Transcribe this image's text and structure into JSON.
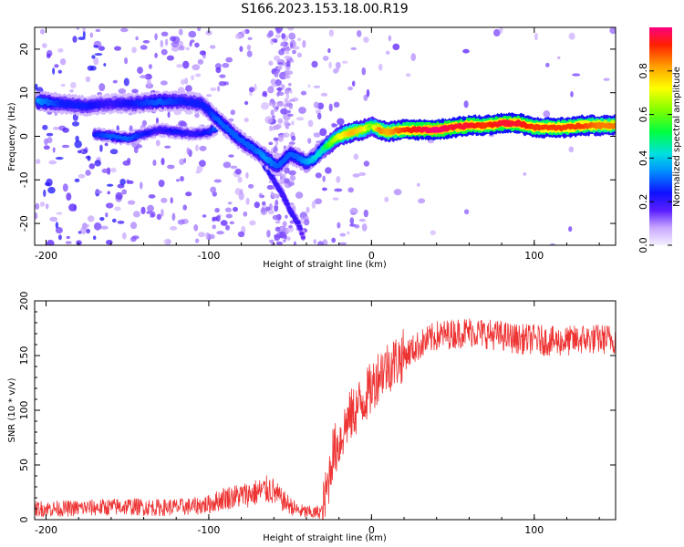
{
  "title": "S166.2023.153.18.00.R19",
  "chart_data": [
    {
      "type": "heatmap",
      "xlabel": "Height of straight line (km)",
      "ylabel": "Frequency (Hz)",
      "xlim": [
        -207,
        150
      ],
      "ylim": [
        -25,
        25
      ],
      "xticks": [
        -200,
        -100,
        0,
        100
      ],
      "yticks": [
        20,
        10,
        0,
        -10,
        -20
      ],
      "colorbar": {
        "label": "Normalized spectral amplitude",
        "range": [
          0,
          1
        ],
        "ticks": [
          "0.0",
          "0.2",
          "0.4",
          "0.6",
          "0.8"
        ],
        "tick_values": [
          0,
          0.2,
          0.4,
          0.6,
          0.8
        ]
      },
      "ridge": {
        "x": [
          -205,
          -190,
          -175,
          -160,
          -145,
          -130,
          -115,
          -105,
          -100,
          -95,
          -88,
          -80,
          -72,
          -65,
          -58,
          -50,
          -45,
          -40,
          -35,
          -30,
          -25,
          -20,
          -12,
          -5,
          0,
          5,
          10,
          20,
          30,
          40,
          50,
          60,
          70,
          80,
          90,
          100,
          110,
          120,
          130,
          140,
          150
        ],
        "y": [
          8,
          7.5,
          7,
          7.5,
          7.5,
          8,
          8,
          7.5,
          6,
          4,
          1.5,
          -1,
          -3,
          -5,
          -7,
          -4,
          -5,
          -6,
          -5,
          -3,
          -1.5,
          0,
          1,
          1.5,
          2.5,
          1.5,
          1,
          1.5,
          1.5,
          1.5,
          2,
          2.5,
          2.5,
          3,
          3,
          2,
          2,
          2,
          2.5,
          2.5,
          2.5
        ],
        "amplitude": [
          0.35,
          0.25,
          0.25,
          0.2,
          0.25,
          0.3,
          0.25,
          0.25,
          0.25,
          0.3,
          0.3,
          0.3,
          0.3,
          0.35,
          0.3,
          0.3,
          0.3,
          0.35,
          0.4,
          0.45,
          0.6,
          0.7,
          0.8,
          0.75,
          0.6,
          0.85,
          0.8,
          0.9,
          0.95,
          1.0,
          0.95,
          0.95,
          0.9,
          0.95,
          0.95,
          0.9,
          0.9,
          0.9,
          0.9,
          0.85,
          0.85
        ]
      },
      "secondary_ridge": {
        "x": [
          -170,
          -160,
          -150,
          -140,
          -130,
          -120,
          -110,
          -100,
          -95
        ],
        "y": [
          0.5,
          0,
          -0.5,
          0.5,
          1.5,
          1,
          0.5,
          1,
          2
        ],
        "amplitude": [
          0.25,
          0.3,
          0.3,
          0.25,
          0.2,
          0.25,
          0.2,
          0.25,
          0.3
        ]
      },
      "descending_branch": {
        "x": [
          -70,
          -65,
          -60,
          -55,
          -50,
          -45,
          -42
        ],
        "y": [
          -3,
          -7,
          -10,
          -13,
          -17,
          -20,
          -23
        ],
        "amplitude": [
          0.25,
          0.25,
          0.2,
          0.2,
          0.2,
          0.2,
          0.15
        ]
      }
    },
    {
      "type": "line",
      "xlabel": "Height of straight line (km)",
      "ylabel": "SNR (10 * v/v)",
      "xlim": [
        -207,
        150
      ],
      "ylim": [
        0,
        200
      ],
      "xticks": [
        -200,
        -100,
        0,
        100
      ],
      "yticks": [
        0,
        50,
        100,
        150,
        200
      ],
      "color": "#ee3333",
      "series": [
        {
          "x": [
            -207,
            -190,
            -170,
            -150,
            -130,
            -110,
            -100,
            -90,
            -80,
            -70,
            -62,
            -55,
            -45,
            -35,
            -30,
            -27,
            -24,
            -20,
            -15,
            -10,
            -5,
            0,
            5,
            10,
            15,
            20,
            30,
            40,
            50,
            60,
            70,
            80,
            90,
            100,
            110,
            120,
            130,
            140,
            150
          ],
          "values": [
            10,
            10,
            11,
            12,
            11,
            12,
            14,
            20,
            22,
            25,
            28,
            18,
            8,
            6,
            8,
            30,
            60,
            70,
            90,
            100,
            110,
            120,
            135,
            140,
            145,
            150,
            160,
            168,
            170,
            172,
            170,
            168,
            165,
            165,
            163,
            163,
            165,
            165,
            165
          ]
        }
      ]
    }
  ]
}
